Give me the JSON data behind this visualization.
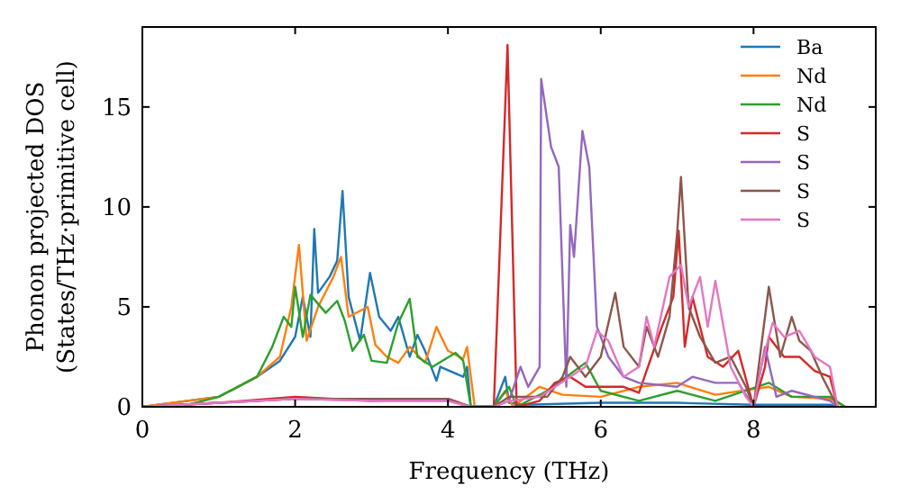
{
  "chart_data": {
    "type": "line",
    "xlabel": "Frequency (THz)",
    "ylabel": "Phonon projected DOS\n(States/THz·primitive cell)",
    "xlim": [
      0,
      9.6
    ],
    "ylim": [
      0,
      19
    ],
    "xticks": [
      0,
      2,
      4,
      6,
      8
    ],
    "yticks": [
      0,
      5,
      10,
      15
    ],
    "legend": "top right",
    "grid": false,
    "line_style": "solid",
    "marker": "none",
    "series": [
      {
        "name": "Ba",
        "color": "#1f77b4",
        "x": [
          0,
          1,
          1.5,
          1.8,
          2,
          2.1,
          2.2,
          2.25,
          2.3,
          2.45,
          2.55,
          2.62,
          2.7,
          2.85,
          2.98,
          3.1,
          3.25,
          3.35,
          3.5,
          3.6,
          3.7,
          3.85,
          3.9,
          4.2,
          4.25,
          4.3,
          4.6,
          4.75,
          4.8,
          5,
          6,
          7,
          8,
          9,
          9.1
        ],
        "values": [
          0,
          0.5,
          1.5,
          2.3,
          3.5,
          5.5,
          3.5,
          8.9,
          5.7,
          6.5,
          7.3,
          10.8,
          5.5,
          3.3,
          6.7,
          4.5,
          3.8,
          4.5,
          2.5,
          3.6,
          2.8,
          1.3,
          2,
          1.5,
          2,
          0,
          0,
          1.5,
          0.2,
          0.1,
          0.2,
          0.2,
          0.1,
          0.1,
          0
        ]
      },
      {
        "name": "Nd",
        "color": "#ff7f0e",
        "x": [
          0,
          1,
          1.5,
          1.8,
          1.95,
          2.05,
          2.15,
          2.3,
          2.5,
          2.6,
          2.7,
          2.95,
          3.05,
          3.2,
          3.35,
          3.5,
          3.7,
          3.85,
          4,
          4.2,
          4.25,
          4.35,
          4.6,
          4.75,
          4.85,
          5.2,
          5.5,
          6,
          6.5,
          7,
          7.5,
          8.2,
          8.5,
          9,
          9.2
        ],
        "values": [
          0,
          0.5,
          1.5,
          2.5,
          5,
          8.1,
          3.3,
          5,
          6.5,
          7.5,
          4.5,
          5,
          3.1,
          2.5,
          2.2,
          3,
          2.2,
          4,
          2.8,
          2.4,
          3,
          0,
          0,
          0.8,
          0,
          1,
          0.6,
          0.5,
          1,
          1.2,
          0.6,
          1,
          0.5,
          0.4,
          0
        ]
      },
      {
        "name": "Nd",
        "color": "#2ca02c",
        "x": [
          0,
          0.6,
          1,
          1.5,
          1.7,
          1.85,
          1.95,
          2,
          2.1,
          2.2,
          2.4,
          2.55,
          2.65,
          2.75,
          2.9,
          3,
          3.2,
          3.35,
          3.5,
          3.6,
          3.8,
          4.1,
          4.2,
          4.3,
          4.6,
          4.8,
          4.9,
          5.3,
          5.8,
          6,
          6.5,
          7,
          7.5,
          8.2,
          8.5,
          9,
          9.2
        ],
        "values": [
          0,
          0.1,
          0.5,
          1.5,
          3,
          4.5,
          4,
          6,
          3.5,
          5.6,
          4.7,
          5.3,
          4.3,
          2.8,
          3.6,
          2.3,
          2.2,
          4.2,
          5.4,
          2.5,
          2,
          2.7,
          2.3,
          0,
          0,
          1,
          0,
          0.8,
          2.2,
          0.8,
          0.3,
          0.8,
          0.3,
          1.2,
          0.5,
          0.5,
          0
        ]
      },
      {
        "name": "S",
        "color": "#d62728",
        "x": [
          0,
          1,
          2,
          3,
          4,
          4.3,
          4.6,
          4.78,
          4.9,
          5.2,
          5.4,
          5.6,
          5.8,
          6,
          6.3,
          6.5,
          6.8,
          6.95,
          7.02,
          7.1,
          7.2,
          7.4,
          7.6,
          7.8,
          8,
          8.15,
          8.2,
          8.4,
          8.6,
          8.8,
          9,
          9.1
        ],
        "values": [
          0,
          0.2,
          0.5,
          0.3,
          0.4,
          0,
          0,
          18.1,
          0,
          0.3,
          1.2,
          1.5,
          1,
          1,
          1,
          0.7,
          4,
          5.5,
          8.8,
          3,
          5.5,
          2.5,
          2,
          2.8,
          0,
          2,
          3.5,
          2.5,
          2.5,
          1.8,
          1.5,
          0
        ]
      },
      {
        "name": "S",
        "color": "#9467bd",
        "x": [
          0,
          1,
          2,
          3,
          4,
          4.3,
          4.6,
          4.8,
          4.95,
          5.05,
          5.2,
          5.22,
          5.35,
          5.45,
          5.55,
          5.6,
          5.65,
          5.76,
          5.85,
          5.95,
          6.1,
          6.3,
          6.5,
          7,
          7.2,
          7.5,
          7.8,
          8,
          8.15,
          8.3,
          8.5,
          9,
          9.1
        ],
        "values": [
          0,
          0.2,
          0.4,
          0.3,
          0.3,
          0,
          0,
          0.3,
          2,
          1,
          2,
          16.4,
          13,
          12,
          1,
          9.1,
          7.5,
          13.8,
          12,
          4,
          2.5,
          1.5,
          1.2,
          1,
          1.5,
          1.2,
          1.2,
          0,
          3,
          0.5,
          0.8,
          0.3,
          0
        ]
      },
      {
        "name": "S",
        "color": "#8c564b",
        "x": [
          0,
          1,
          2,
          3,
          4,
          4.3,
          4.6,
          4.8,
          5.3,
          5.5,
          5.6,
          5.8,
          6,
          6.19,
          6.3,
          6.5,
          6.6,
          6.75,
          6.9,
          7,
          7.05,
          7.15,
          7.3,
          7.5,
          7.7,
          7.9,
          8,
          8.2,
          8.35,
          8.5,
          8.6,
          8.75,
          8.9,
          9.1
        ],
        "values": [
          0,
          0.2,
          0.4,
          0.4,
          0.4,
          0,
          0,
          0.5,
          0.5,
          1.5,
          2.5,
          1.5,
          2.5,
          5.7,
          3,
          2,
          4,
          2.5,
          4.5,
          8.7,
          11.5,
          5,
          3.5,
          2.2,
          2.5,
          1,
          0,
          6,
          2.5,
          4.5,
          3.3,
          2.8,
          1.5,
          0
        ]
      },
      {
        "name": "S",
        "color": "#e377c2",
        "x": [
          0,
          1,
          2,
          3,
          4,
          4.3,
          4.6,
          4.8,
          5.2,
          5.8,
          5.95,
          6.1,
          6.3,
          6.5,
          6.6,
          6.7,
          6.9,
          7.05,
          7.15,
          7.3,
          7.4,
          7.5,
          7.7,
          7.9,
          8,
          8.1,
          8.25,
          8.4,
          8.6,
          8.8,
          9,
          9.1
        ],
        "values": [
          0,
          0.2,
          0.4,
          0.3,
          0.3,
          0,
          0,
          0.3,
          0.5,
          2,
          3.8,
          3.3,
          1.5,
          2,
          4.5,
          3,
          6.5,
          7.1,
          5,
          6.5,
          4,
          6.3,
          2,
          0.5,
          0,
          2,
          4.2,
          3.5,
          3.8,
          2.5,
          2,
          0
        ]
      }
    ]
  }
}
